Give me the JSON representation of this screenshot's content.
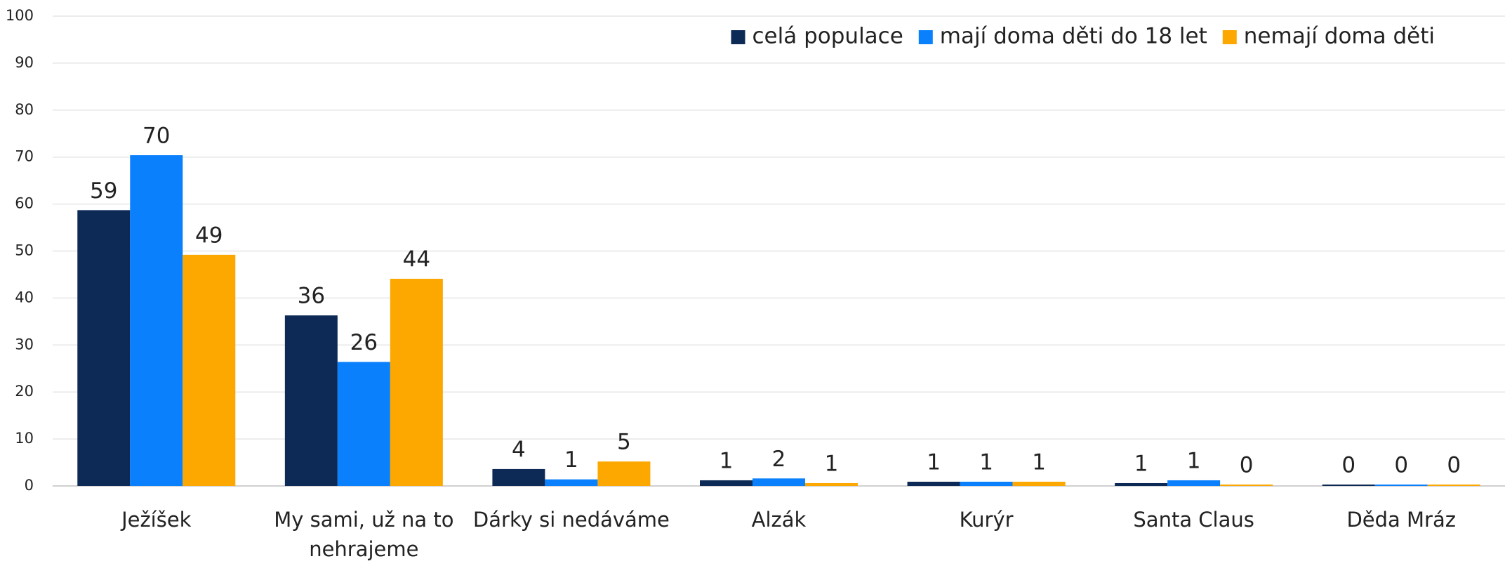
{
  "chart_data": {
    "type": "bar",
    "categories": [
      "Ježíšek",
      "My sami, už na to nehrajeme",
      "Dárky si nedáváme",
      "Alzák",
      "Kurýr",
      "Santa Claus",
      "Děda Mráz"
    ],
    "series": [
      {
        "name": "celá populace",
        "color": "#0d2a57",
        "values": [
          58.7,
          36.3,
          3.6,
          1.2,
          0.9,
          0.6,
          0.3
        ],
        "value_labels": [
          "59",
          "36",
          "4",
          "1",
          "1",
          "1",
          "0"
        ]
      },
      {
        "name": "mají doma děti do 18 let",
        "color": "#0a80fc",
        "values": [
          70.4,
          26.4,
          1.4,
          1.6,
          0.9,
          1.2,
          0.3
        ],
        "value_labels": [
          "70",
          "26",
          "1",
          "2",
          "1",
          "1",
          "0"
        ]
      },
      {
        "name": "nemají doma děti",
        "color": "#fca800",
        "values": [
          49.2,
          44.1,
          5.2,
          0.6,
          0.9,
          0.3,
          0.3
        ],
        "value_labels": [
          "49",
          "44",
          "5",
          "1",
          "1",
          "0",
          "0"
        ]
      }
    ],
    "ylim": [
      0,
      100
    ],
    "yticks": [
      0,
      10,
      20,
      30,
      40,
      50,
      60,
      70,
      80,
      90,
      100
    ],
    "grid": true,
    "legend": "top-right"
  }
}
